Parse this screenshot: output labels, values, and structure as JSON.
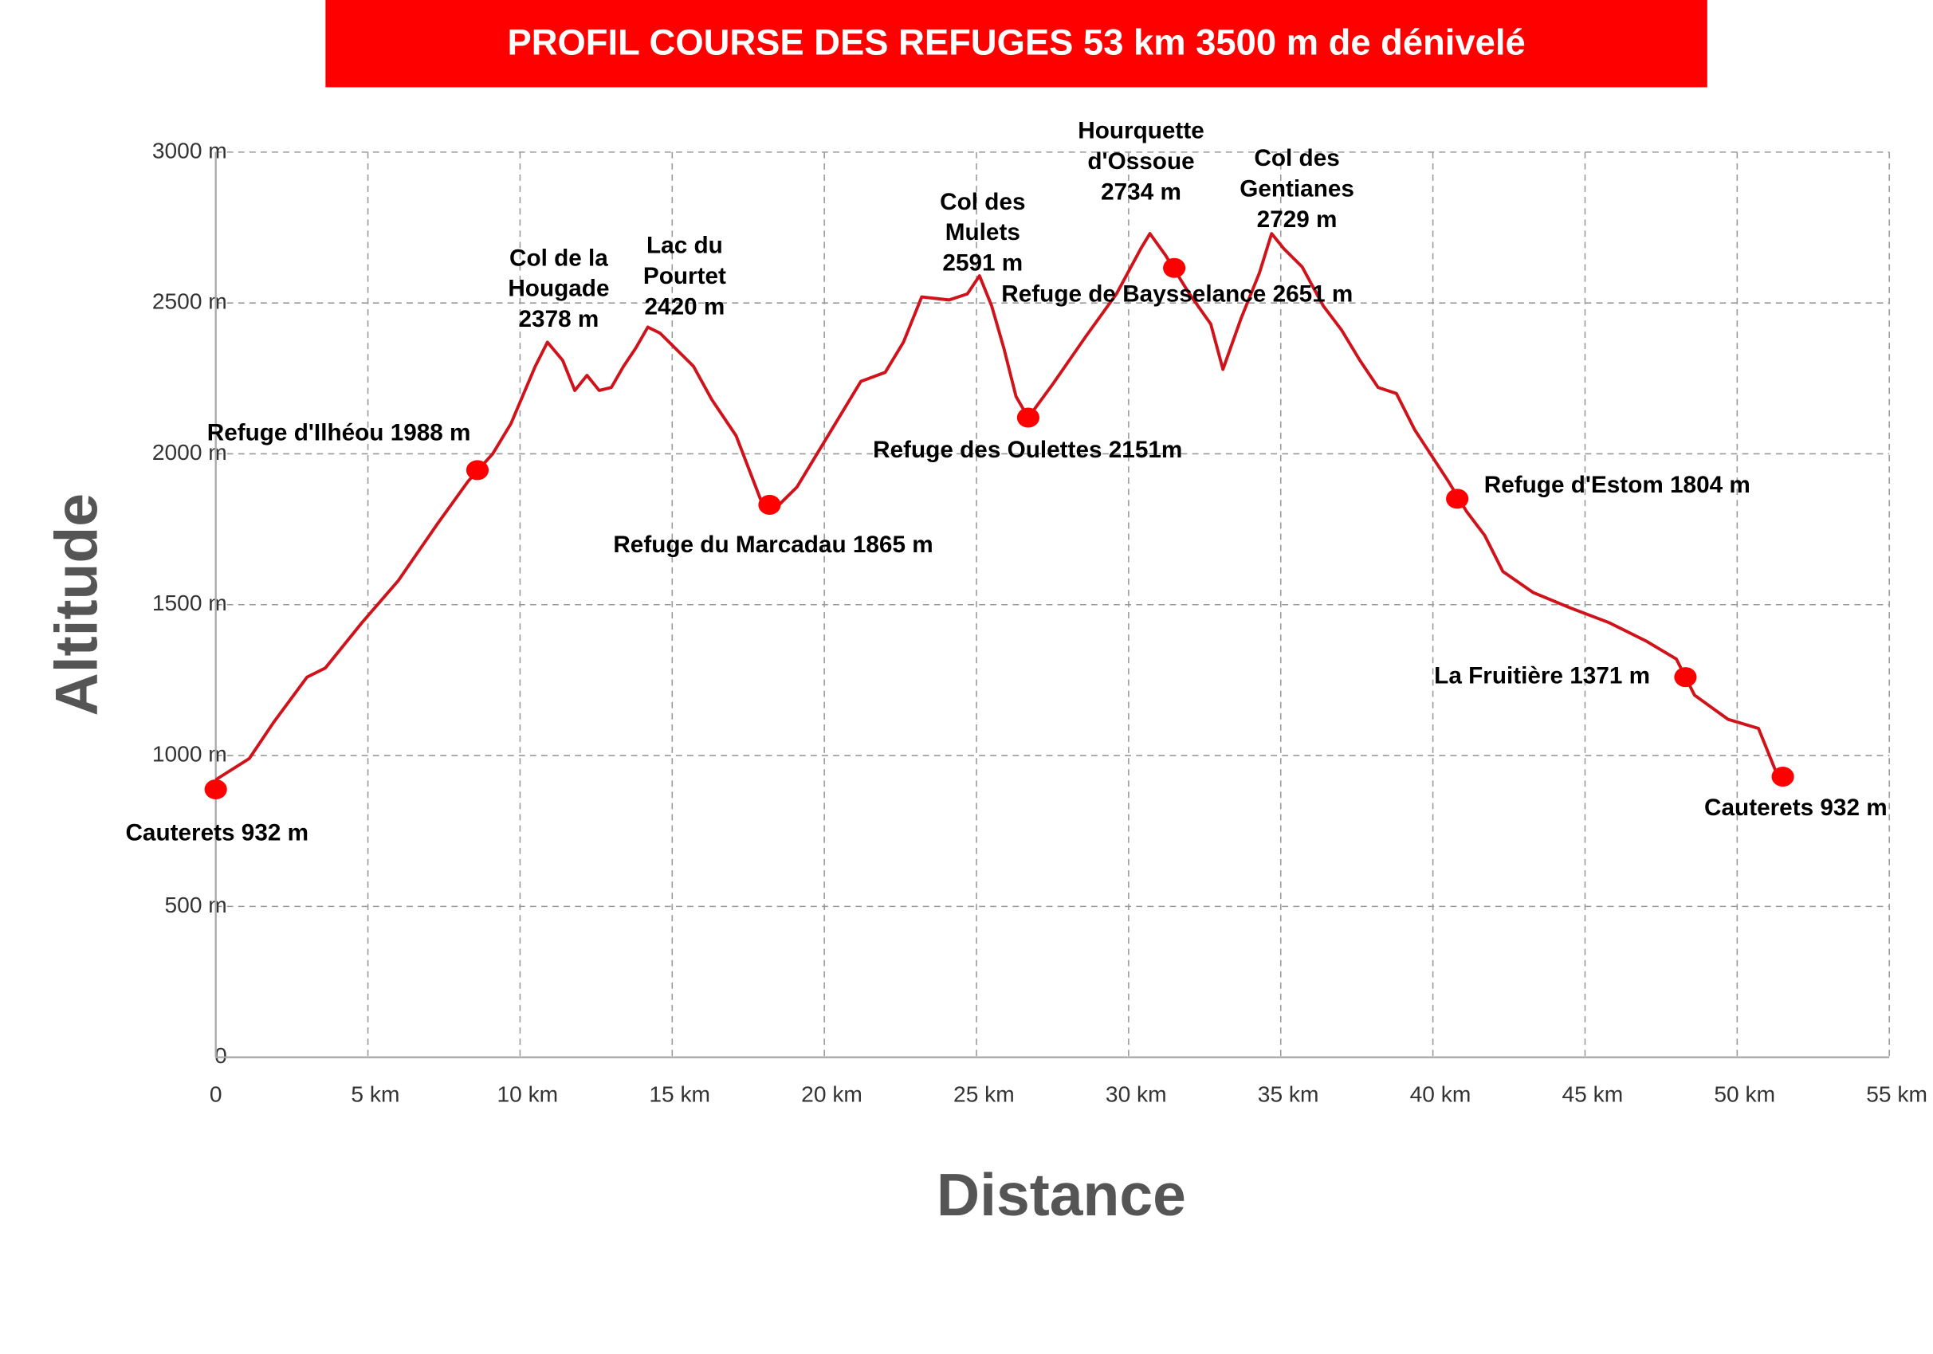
{
  "chart_data": {
    "type": "line",
    "title": "PROFIL COURSE DES REFUGES 53 km 3500 m de dénivelé",
    "x_label": "Distance",
    "y_label": "Altitude",
    "color": "#d0121b",
    "marker_color": "#ff0000",
    "grid": true,
    "xlim": [
      0,
      55
    ],
    "ylim": [
      0,
      3000
    ],
    "xticks": [
      0,
      {
        "value": 5,
        "label": "5 km"
      },
      {
        "value": 10,
        "label": "10 km"
      },
      {
        "value": 15,
        "label": "15 km"
      },
      {
        "value": 20,
        "label": "20 km"
      },
      {
        "value": 25,
        "label": "25 km"
      },
      {
        "value": 30,
        "label": "30 km"
      },
      {
        "value": 35,
        "label": "35 km"
      },
      {
        "value": 40,
        "label": "40 km"
      },
      {
        "value": 45,
        "label": "45 km"
      },
      {
        "value": 50,
        "label": "50 km"
      },
      {
        "value": 55,
        "label": "55 km"
      }
    ],
    "yticks": [
      0,
      {
        "value": 500,
        "label": "500 m"
      },
      {
        "value": 1000,
        "label": "1000 m"
      },
      {
        "value": 1500,
        "label": "1500 m"
      },
      {
        "value": 2000,
        "label": "2000 m"
      },
      {
        "value": 2500,
        "label": "2500 m"
      },
      {
        "value": 3000,
        "label": "3000 m"
      }
    ],
    "x": [
      0,
      1.1,
      1.9,
      3.0,
      3.6,
      4.8,
      6.0,
      7.3,
      8.3,
      9.1,
      9.7,
      10.5,
      10.9,
      11.4,
      11.8,
      12.2,
      12.6,
      13.0,
      13.4,
      13.8,
      14.2,
      14.6,
      15.7,
      16.3,
      17.1,
      17.9,
      18.5,
      19.1,
      20.0,
      21.2,
      22.0,
      22.6,
      23.2,
      24.1,
      24.7,
      25.1,
      25.5,
      25.9,
      26.3,
      26.7,
      27.5,
      28.6,
      29.6,
      30.4,
      30.7,
      31.2,
      32.0,
      32.7,
      33.1,
      33.7,
      34.3,
      34.7,
      35.1,
      35.7,
      36.4,
      37.0,
      37.6,
      38.2,
      38.8,
      39.4,
      40.5,
      41.1,
      41.7,
      42.3,
      43.3,
      44.5,
      45.8,
      47.0,
      48.0,
      48.6,
      49.7,
      50.7,
      51.3
    ],
    "values": [
      920,
      990,
      1110,
      1260,
      1290,
      1440,
      1580,
      1770,
      1910,
      2000,
      2100,
      2290,
      2370,
      2310,
      2210,
      2260,
      2210,
      2220,
      2290,
      2350,
      2420,
      2400,
      2290,
      2180,
      2060,
      1850,
      1830,
      1890,
      2040,
      2240,
      2270,
      2370,
      2520,
      2510,
      2530,
      2590,
      2490,
      2350,
      2190,
      2120,
      2230,
      2390,
      2530,
      2680,
      2730,
      2660,
      2530,
      2430,
      2280,
      2450,
      2600,
      2730,
      2680,
      2620,
      2490,
      2410,
      2310,
      2220,
      2200,
      2080,
      1910,
      1810,
      1730,
      1610,
      1540,
      1490,
      1440,
      1380,
      1320,
      1200,
      1120,
      1090,
      940
    ],
    "points": [
      {
        "label": "Cauterets 932 m",
        "x": 0,
        "y": 888
      },
      {
        "label": "Refuge d'Ilhéou 1988 m",
        "x": 8.6,
        "y": 1946
      },
      {
        "label": "Refuge du Marcadau 1865 m",
        "x": 18.2,
        "y": 1831
      },
      {
        "label": "Refuge des Oulettes 2151m",
        "x": 26.7,
        "y": 2120
      },
      {
        "label": "Refuge de Baysselance 2651 m",
        "x": 31.5,
        "y": 2616
      },
      {
        "label": "Refuge d'Estom 1804 m",
        "x": 40.8,
        "y": 1851
      },
      {
        "label": "La Fruitière 1371 m",
        "x": 48.3,
        "y": 1260
      },
      {
        "label": "Cauterets 932 m",
        "x": 51.5,
        "y": 930
      }
    ],
    "peaks": [
      [
        "Col de la",
        "Hougade",
        "2378 m"
      ],
      [
        "Lac du",
        "Pourtet",
        "2420 m"
      ],
      [
        "Col des",
        "Mulets",
        "2591 m"
      ],
      [
        "Hourquette",
        "d'Ossoue",
        "2734 m"
      ],
      [
        "Col des",
        "Gentianes",
        "2729 m"
      ]
    ]
  }
}
